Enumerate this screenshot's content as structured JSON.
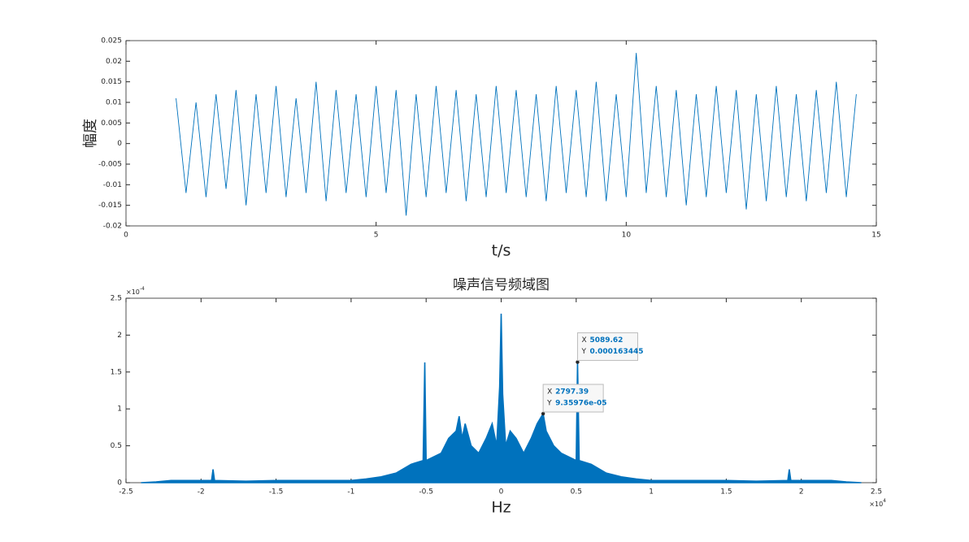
{
  "chart_data": [
    {
      "type": "line",
      "ylabel": "幅度",
      "xlabel": "t/s",
      "xlim": [
        0,
        15
      ],
      "xticks": [
        0,
        5,
        10,
        15
      ],
      "ylim": [
        -0.02,
        0.025
      ],
      "yticks": [
        -0.02,
        -0.015,
        -0.01,
        -0.005,
        0,
        0.005,
        0.01,
        0.015,
        0.02,
        0.025
      ],
      "x": [
        1.0,
        1.2,
        1.4,
        1.6,
        1.8,
        2.0,
        2.2,
        2.4,
        2.6,
        2.8,
        3.0,
        3.2,
        3.4,
        3.6,
        3.8,
        4.0,
        4.2,
        4.4,
        4.6,
        4.8,
        5.0,
        5.2,
        5.4,
        5.6,
        5.8,
        6.0,
        6.2,
        6.4,
        6.6,
        6.8,
        7.0,
        7.2,
        7.4,
        7.6,
        7.8,
        8.0,
        8.2,
        8.4,
        8.6,
        8.8,
        9.0,
        9.2,
        9.4,
        9.6,
        9.8,
        10.0,
        10.2,
        10.4,
        10.6,
        10.8,
        11.0,
        11.2,
        11.4,
        11.6,
        11.8,
        12.0,
        12.2,
        12.4,
        12.6,
        12.8,
        13.0,
        13.2,
        13.4,
        13.6,
        13.8,
        14.0,
        14.2,
        14.4,
        14.6
      ],
      "series": [
        {
          "color": "#0072bd",
          "values": [
            0.011,
            -0.012,
            0.01,
            -0.013,
            0.012,
            -0.011,
            0.013,
            -0.015,
            0.012,
            -0.012,
            0.014,
            -0.013,
            0.011,
            -0.012,
            0.015,
            -0.014,
            0.013,
            -0.012,
            0.012,
            -0.013,
            0.014,
            -0.012,
            0.013,
            -0.0175,
            0.012,
            -0.013,
            0.014,
            -0.012,
            0.013,
            -0.014,
            0.012,
            -0.013,
            0.014,
            -0.012,
            0.013,
            -0.013,
            0.012,
            -0.014,
            0.014,
            -0.012,
            0.013,
            -0.013,
            0.015,
            -0.014,
            0.012,
            -0.013,
            0.022,
            -0.012,
            0.014,
            -0.013,
            0.013,
            -0.015,
            0.012,
            -0.013,
            0.014,
            -0.012,
            0.013,
            -0.016,
            0.012,
            -0.014,
            0.014,
            -0.013,
            0.012,
            -0.014,
            0.013,
            -0.012,
            0.015,
            -0.013,
            0.012
          ]
        }
      ]
    },
    {
      "type": "area",
      "title": "噪声信号频域图",
      "xlabel": "Hz",
      "xlim": [
        -25000,
        25000
      ],
      "xticks": [
        {
          "value": -25000,
          "label": "-2.5"
        },
        {
          "value": -20000,
          "label": "-2"
        },
        {
          "value": -15000,
          "label": "-1.5"
        },
        {
          "value": -10000,
          "label": "-1"
        },
        {
          "value": -5000,
          "label": "-0.5"
        },
        0,
        {
          "value": 5000,
          "label": "0.5"
        },
        {
          "value": 10000,
          "label": "1"
        },
        {
          "value": 15000,
          "label": "1.5"
        },
        {
          "value": 20000,
          "label": "2"
        },
        {
          "value": 25000,
          "label": "2.5"
        }
      ],
      "x_exponent": {
        "base": "×10",
        "power": "4"
      },
      "ylim": [
        0,
        0.00025
      ],
      "yticks": [
        0,
        {
          "value": 5e-05,
          "label": "0.5"
        },
        {
          "value": 0.0001,
          "label": "1"
        },
        {
          "value": 0.00015,
          "label": "1.5"
        },
        {
          "value": 0.0002,
          "label": "2"
        },
        {
          "value": 0.00025,
          "label": "2.5"
        }
      ],
      "y_exponent": {
        "base": "×10",
        "power": "-4"
      },
      "x": [
        -24000,
        -23000,
        -22000,
        -20000,
        -19300,
        -19200,
        -19100,
        -17000,
        -15000,
        -12000,
        -10000,
        -9000,
        -8000,
        -7000,
        -6000,
        -5200,
        -5090,
        -5000,
        -4500,
        -4000,
        -3500,
        -3000,
        -2800,
        -2600,
        -2400,
        -2000,
        -1500,
        -1000,
        -600,
        -300,
        -100,
        0,
        100,
        300,
        600,
        1000,
        1500,
        2000,
        2400,
        2797.39,
        3000,
        3500,
        4000,
        4500,
        5000,
        5089.62,
        5200,
        6000,
        7000,
        8000,
        9000,
        10000,
        12000,
        15000,
        17000,
        19100,
        19200,
        19300,
        20000,
        22000,
        23000,
        24000
      ],
      "series": [
        {
          "color": "#0072bd",
          "values": [
            0,
            1e-06,
            3e-06,
            3e-06,
            3e-06,
            1.8e-05,
            3e-06,
            2e-06,
            3e-06,
            3e-06,
            3e-06,
            5e-06,
            8e-06,
            1.3e-05,
            2.5e-05,
            3e-05,
            0.000163,
            3e-05,
            3.5e-05,
            4e-05,
            6e-05,
            7e-05,
            9e-05,
            6e-05,
            8e-05,
            5e-05,
            4e-05,
            6e-05,
            8e-05,
            5e-05,
            0.00013,
            0.000229,
            0.00012,
            5e-05,
            7e-05,
            6e-05,
            4e-05,
            6e-05,
            8e-05,
            9.35976e-05,
            7e-05,
            5e-05,
            4e-05,
            3.5e-05,
            3e-05,
            0.000163445,
            3e-05,
            2.5e-05,
            1.3e-05,
            8e-06,
            5e-06,
            3e-06,
            3e-06,
            3e-06,
            2e-06,
            3e-06,
            1.8e-05,
            3e-06,
            3e-06,
            3e-06,
            1e-06,
            0
          ]
        }
      ],
      "datatips": [
        {
          "x_name": "X",
          "x": 5089.62,
          "y_name": "Y",
          "y": 0.000163445
        },
        {
          "x_name": "X",
          "x": 2797.39,
          "y_name": "Y",
          "y": {
            "value": 9.35976e-05,
            "label": "9.35976e-05"
          }
        }
      ]
    }
  ]
}
